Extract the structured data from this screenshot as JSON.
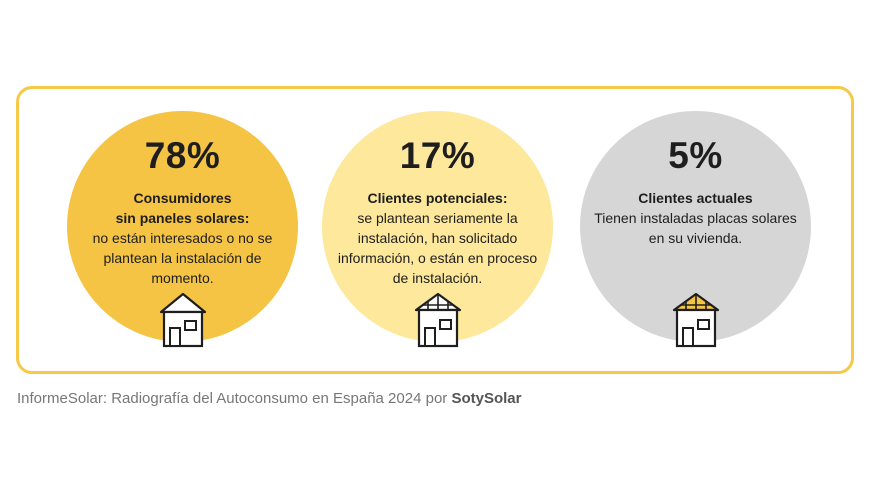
{
  "stats": [
    {
      "percent": "78%",
      "title_line1": "Consumidores",
      "title_line2": "sin paneles solares:",
      "body": "no están interesados o no se plantean la instalación de momento.",
      "icon": "house-icon",
      "color": "#f5c444"
    },
    {
      "percent": "17%",
      "title_line1": "Clientes potenciales:",
      "title_line2": "",
      "body": "se plantean seriamente la instalación, han solicitado información, o están en proceso de instalación.",
      "icon": "house-with-panels-outline-icon",
      "color": "#fde89b"
    },
    {
      "percent": "5%",
      "title_line1": "Clientes actuales",
      "title_line2": "",
      "body": "Tienen instaladas placas solares en su vivienda.",
      "icon": "house-with-solar-panels-icon",
      "color": "#d6d6d6"
    }
  ],
  "caption": {
    "text": "InformeSolar: Radiografía del Autoconsumo en España 2024 por",
    "brand": "SotySolar"
  },
  "colors": {
    "border": "#f6c946",
    "panel_fill": "#f5c444",
    "caption": "#777777"
  }
}
